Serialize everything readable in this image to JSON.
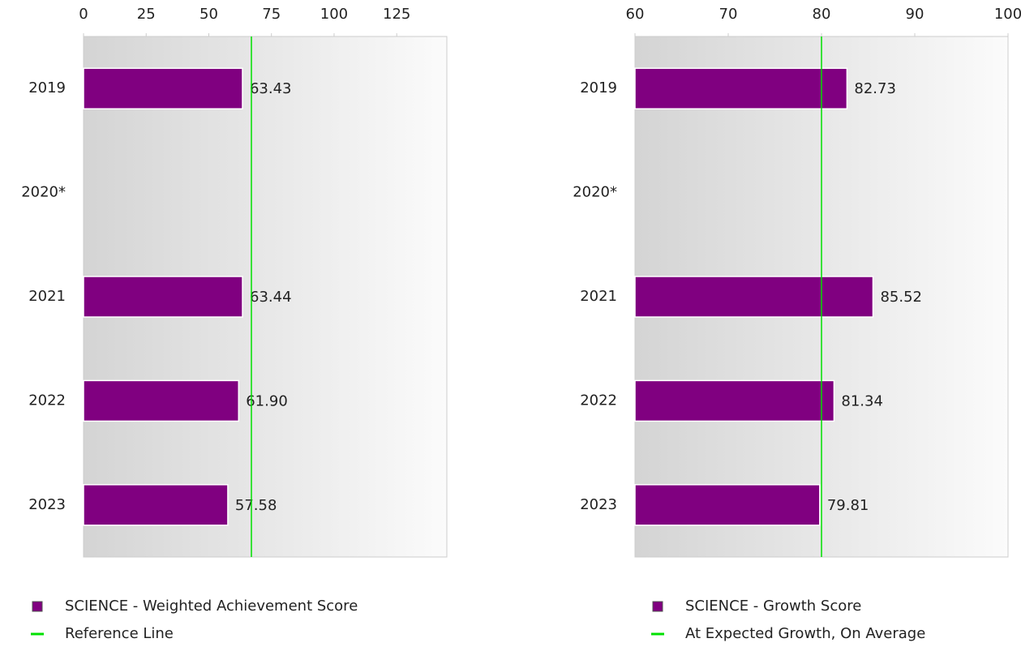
{
  "chart_data": [
    {
      "type": "bar",
      "orientation": "horizontal",
      "categories": [
        "2019",
        "2020*",
        "2021",
        "2022",
        "2023"
      ],
      "series": [
        {
          "name": "SCIENCE - Weighted Achievement Score",
          "color": "#800080",
          "values": [
            63.43,
            null,
            63.44,
            61.9,
            57.58
          ],
          "value_labels": [
            "63.43",
            null,
            "63.44",
            "61.90",
            "57.58"
          ]
        }
      ],
      "reference_line": {
        "name": "Reference Line",
        "value": 67,
        "color": "#00e000"
      },
      "xlim": [
        0,
        145
      ],
      "xticks": [
        0,
        25,
        50,
        75,
        100,
        125
      ]
    },
    {
      "type": "bar",
      "orientation": "horizontal",
      "categories": [
        "2019",
        "2020*",
        "2021",
        "2022",
        "2023"
      ],
      "series": [
        {
          "name": "SCIENCE - Growth Score",
          "color": "#800080",
          "values": [
            82.73,
            null,
            85.52,
            81.34,
            79.81
          ],
          "value_labels": [
            "82.73",
            null,
            "85.52",
            "81.34",
            "79.81"
          ]
        }
      ],
      "reference_line": {
        "name": "At Expected Growth, On Average",
        "value": 80,
        "color": "#00e000"
      },
      "xlim": [
        60,
        100
      ],
      "xticks": [
        60,
        70,
        80,
        90,
        100
      ]
    }
  ]
}
